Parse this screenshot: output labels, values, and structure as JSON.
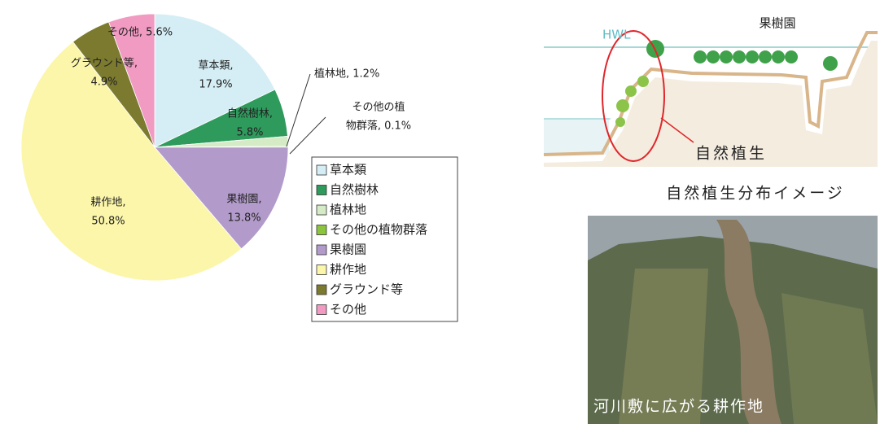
{
  "chart_data": {
    "type": "pie",
    "categories": [
      "草本類",
      "自然樹林",
      "植林地",
      "その他の植物群落",
      "果樹園",
      "耕作地",
      "グラウンド等",
      "その他"
    ],
    "values": [
      17.9,
      5.8,
      1.2,
      0.1,
      13.8,
      50.8,
      4.9,
      5.6
    ],
    "value_labels": [
      "草本類,\n17.9%",
      "自然樹林,\n5.8%",
      "植林地, 1.2%",
      "その他の植\n物群落, 0.1%",
      "果樹園,\n13.8%",
      "耕作地,\n50.8%",
      "グラウンド等,\n4.9%",
      "その他, 5.6%"
    ],
    "colors": [
      "#d5eef5",
      "#2e9a5c",
      "#d4ebc6",
      "#8cc43e",
      "#b29bca",
      "#fbf6a9",
      "#7b7a2f",
      "#f19ac2"
    ],
    "legend": "right"
  },
  "illustration": {
    "hwl": "HWL",
    "orchard": "果樹園",
    "vegetation": "自然植生",
    "caption": "自然植生分布イメージ"
  },
  "photo": {
    "caption": "河川敷に広がる耕作地"
  }
}
